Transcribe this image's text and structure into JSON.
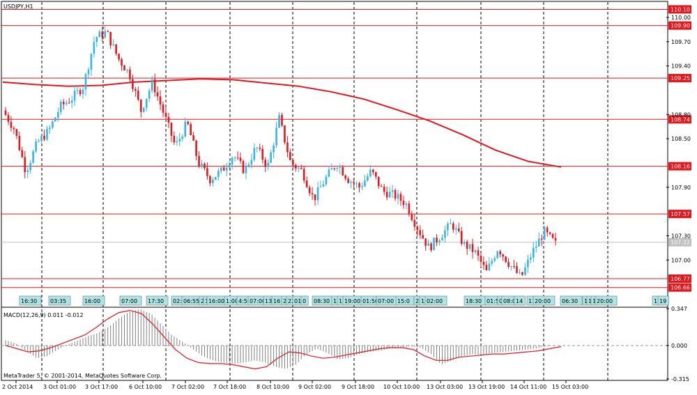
{
  "symbol_title": "USDJPY,H1",
  "macd_label": "MACD(12,26,9) 0.011 -0.012",
  "copyright": "MetaTrader 5, © 2001-2014, MetaQuotes Software Corp.",
  "colors": {
    "bull": "#33b5e5",
    "bear": "#e8151b",
    "level_line": "#e8151b",
    "level_tag": "#e8151b",
    "ma": "#e8151b",
    "grid": "#000000",
    "current_price_tag": "#c0c0c0",
    "macd_hist": "#808080",
    "macd_signal": "#e8151b",
    "event_box": "#aee4e4"
  },
  "chart_data": {
    "type": "candlestick",
    "price_range": [
      106.58,
      110.19
    ],
    "price_ticks": [
      "110.00",
      "109.70",
      "109.40",
      "108.80",
      "108.50",
      "107.90",
      "107.30",
      "107.00"
    ],
    "horizontal_levels": [
      "110.10",
      "109.90",
      "109.25",
      "108.74",
      "108.16",
      "107.57",
      "106.77",
      "106.66"
    ],
    "current_price": "107.22",
    "time_labels": [
      "2 Oct 2014",
      "3 Oct 01:00",
      "3 Oct 17:00",
      "6 Oct 10:00",
      "7 Oct 02:00",
      "7 Oct 18:00",
      "8 Oct 10:00",
      "9 Oct 02:00",
      "9 Oct 18:00",
      "10 Oct 10:00",
      "13 Oct 03:00",
      "13 Oct 19:00",
      "14 Oct 11:00",
      "15 Oct 03:00"
    ],
    "moving_average": [
      109.2,
      109.17,
      109.15,
      109.16,
      109.2,
      109.22,
      109.24,
      109.23,
      109.19,
      109.15,
      109.08,
      108.99,
      108.86,
      108.72,
      108.55,
      108.36,
      108.22,
      108.15
    ],
    "price_path": [
      108.85,
      108.62,
      108.1,
      108.45,
      108.6,
      108.9,
      109.0,
      109.15,
      109.75,
      109.82,
      109.5,
      109.3,
      108.85,
      109.2,
      108.8,
      108.4,
      108.7,
      108.2,
      108.0,
      108.1,
      108.3,
      108.1,
      108.4,
      108.15,
      108.75,
      108.2,
      108.1,
      107.75,
      108.0,
      108.2,
      108.0,
      107.9,
      108.1,
      107.85,
      107.8,
      107.7,
      107.4,
      107.15,
      107.3,
      107.45,
      107.2,
      107.1,
      106.85,
      107.15,
      106.95,
      106.78,
      107.1,
      107.35,
      107.2
    ],
    "event_labels": [
      "16:30",
      "03:35",
      "16:00",
      "07:00",
      "17:30",
      "02:",
      "06:55",
      "2",
      "1",
      "16:00",
      "1:00",
      "4:50",
      "07:00",
      "13",
      "16",
      "2",
      "22",
      "01:",
      "0",
      "08:30",
      "1",
      "16",
      "19:00",
      "01:50",
      "07:00",
      "15:0",
      "2",
      "15",
      "02:00",
      "18:30",
      "01:5",
      "0",
      "08:00",
      "14",
      "11",
      "20:00",
      "06:30",
      "1",
      "1",
      "1",
      "20:00",
      "1",
      "19"
    ],
    "macd_range": [
      -0.315,
      0.347
    ],
    "macd_ticks": [
      "0.347",
      "0.000",
      "-0.315"
    ],
    "macd_hist": [
      0.05,
      0.02,
      -0.05,
      -0.12,
      -0.1,
      -0.04,
      0.01,
      0.05,
      0.09,
      0.12,
      0.18,
      0.26,
      0.32,
      0.34,
      0.3,
      0.2,
      0.1,
      0.04,
      -0.03,
      -0.1,
      -0.14,
      -0.16,
      -0.17,
      -0.16,
      -0.14,
      -0.16,
      -0.2,
      -0.22,
      -0.18,
      -0.08,
      -0.03,
      -0.07,
      -0.13,
      -0.12,
      -0.08,
      -0.06,
      -0.05,
      -0.03,
      -0.03,
      -0.01,
      -0.02,
      -0.08,
      -0.18,
      -0.14,
      -0.1,
      -0.08,
      -0.09,
      -0.07,
      -0.06,
      -0.05,
      -0.04,
      -0.03,
      -0.01,
      0.0
    ],
    "macd_signal": [
      0.0,
      -0.03,
      -0.06,
      -0.05,
      -0.02,
      0.02,
      0.06,
      0.1,
      0.17,
      0.25,
      0.31,
      0.33,
      0.3,
      0.2,
      0.08,
      -0.04,
      -0.12,
      -0.16,
      -0.17,
      -0.17,
      -0.18,
      -0.2,
      -0.22,
      -0.2,
      -0.12,
      -0.06,
      -0.07,
      -0.1,
      -0.12,
      -0.11,
      -0.09,
      -0.07,
      -0.05,
      -0.03,
      -0.02,
      -0.02,
      -0.04,
      -0.1,
      -0.14,
      -0.14,
      -0.11,
      -0.1,
      -0.09,
      -0.08,
      -0.08,
      -0.07,
      -0.06,
      -0.05,
      -0.03,
      -0.01
    ]
  }
}
